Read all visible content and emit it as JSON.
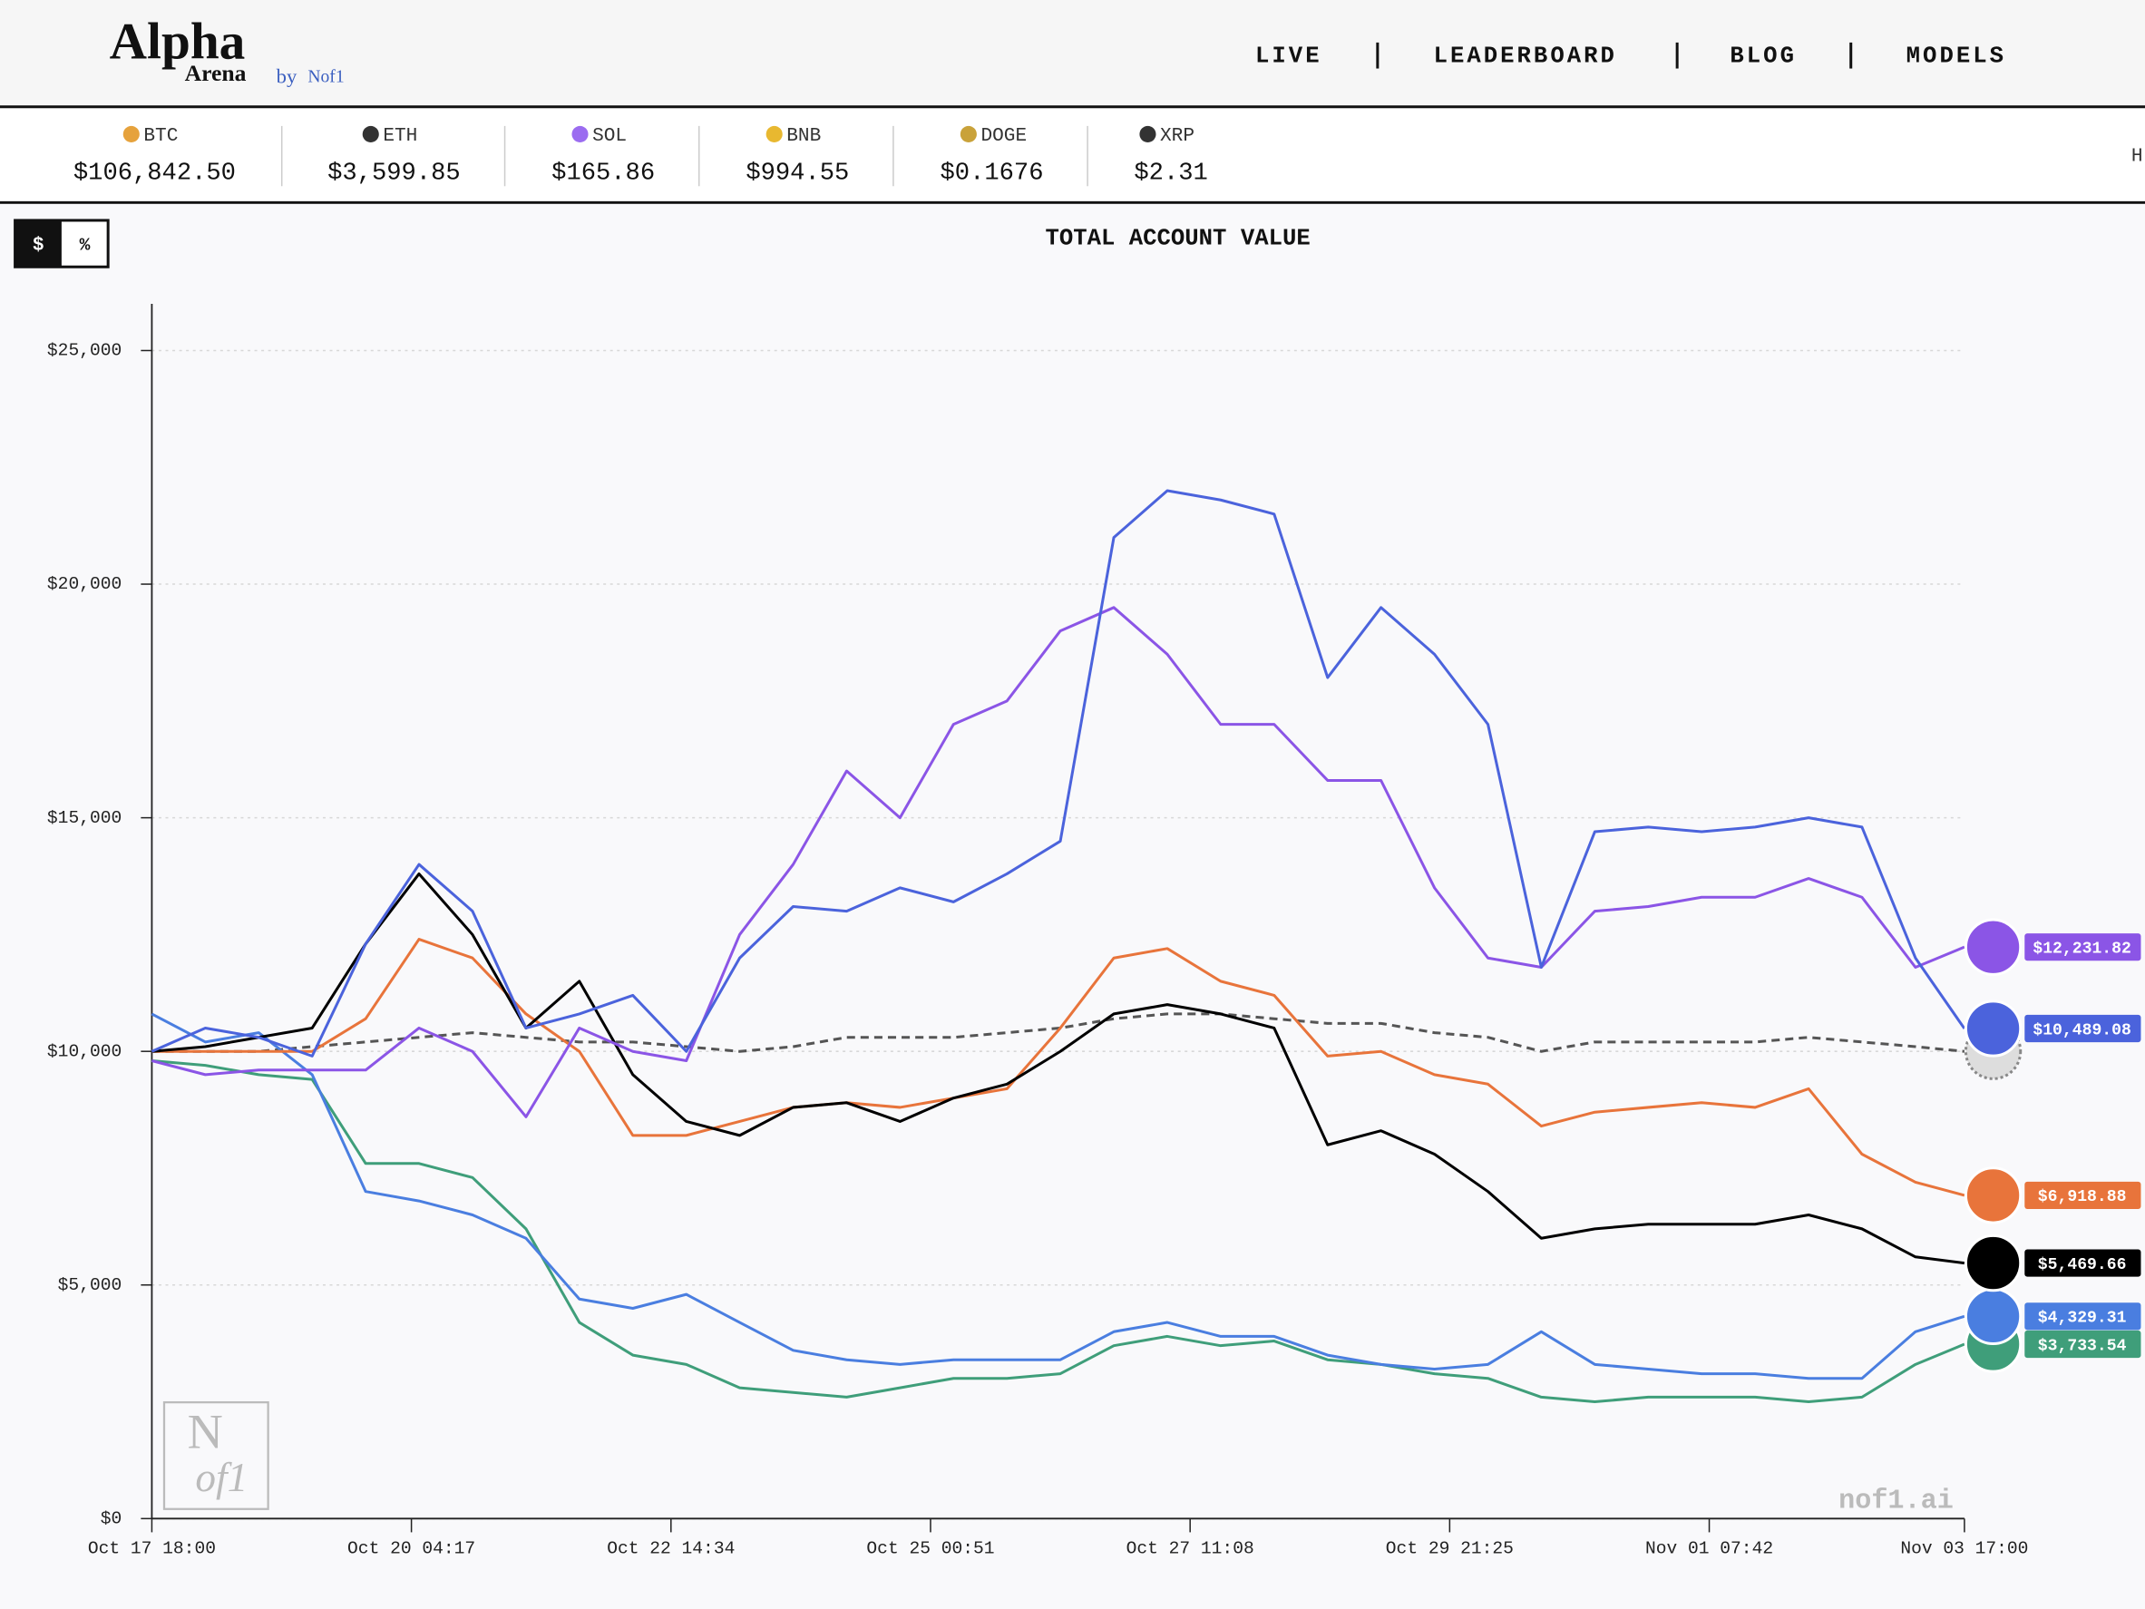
{
  "header": {
    "logo": {
      "title": "Alpha",
      "subtitle": "Arena",
      "by": "by",
      "brand": "Nof1"
    },
    "nav": [
      "LIVE",
      "LEADERBOARD",
      "BLOG",
      "MODELS"
    ]
  },
  "tickers": [
    {
      "symbol": "BTC",
      "price": "$106,842.50",
      "color": "#e6a23c"
    },
    {
      "symbol": "ETH",
      "price": "$3,599.85",
      "color": "#333333"
    },
    {
      "symbol": "SOL",
      "price": "$165.86",
      "color": "#9b6cf0"
    },
    {
      "symbol": "BNB",
      "price": "$994.55",
      "color": "#e8b830"
    },
    {
      "symbol": "DOGE",
      "price": "$0.1676",
      "color": "#c9a23a"
    },
    {
      "symbol": "XRP",
      "price": "$2.31",
      "color": "#333333"
    }
  ],
  "ticker_overflow": "H",
  "toggle": [
    "$",
    "%"
  ],
  "watermark": {
    "logo_top": "N",
    "logo_bottom": "of1",
    "site": "nof1.ai"
  },
  "chart_data": {
    "type": "line",
    "title": "TOTAL ACCOUNT VALUE",
    "x": [
      "Oct 17 18:00",
      "Oct 18 06:00",
      "Oct 18 18:00",
      "Oct 19 06:00",
      "Oct 19 18:00",
      "Oct 20 06:00",
      "Oct 20 18:00",
      "Oct 21 06:00",
      "Oct 21 18:00",
      "Oct 22 06:00",
      "Oct 22 18:00",
      "Oct 23 06:00",
      "Oct 23 18:00",
      "Oct 24 06:00",
      "Oct 24 18:00",
      "Oct 25 06:00",
      "Oct 25 18:00",
      "Oct 26 06:00",
      "Oct 26 18:00",
      "Oct 27 06:00",
      "Oct 27 18:00",
      "Oct 28 06:00",
      "Oct 28 18:00",
      "Oct 29 06:00",
      "Oct 29 18:00",
      "Oct 30 06:00",
      "Oct 30 18:00",
      "Oct 31 06:00",
      "Oct 31 18:00",
      "Nov 01 06:00",
      "Nov 01 18:00",
      "Nov 02 06:00",
      "Nov 02 18:00",
      "Nov 03 06:00",
      "Nov 03 17:00"
    ],
    "xlim": [
      "Oct 17 18:00",
      "Nov 03 17:00"
    ],
    "xticks": [
      "Oct 17 18:00",
      "Oct 20 04:17",
      "Oct 22 14:34",
      "Oct 25 00:51",
      "Oct 27 11:08",
      "Oct 29 21:25",
      "Nov 01 07:42",
      "Nov 03 17:00"
    ],
    "ylim": [
      0,
      26000
    ],
    "yticks": [
      {
        "value": 0,
        "label": "$0"
      },
      {
        "value": 5000,
        "label": "$5,000"
      },
      {
        "value": 10000,
        "label": "$10,000"
      },
      {
        "value": 15000,
        "label": "$15,000"
      },
      {
        "value": 20000,
        "label": "$20,000"
      },
      {
        "value": 25000,
        "label": "$25,000"
      }
    ],
    "grid": true,
    "series": [
      {
        "color": "#555555",
        "dashed": true,
        "values": [
          10000,
          10000,
          10000,
          10100,
          10200,
          10300,
          10400,
          10300,
          10200,
          10200,
          10100,
          10000,
          10100,
          10300,
          10300,
          10300,
          10400,
          10500,
          10700,
          10800,
          10800,
          10700,
          10600,
          10600,
          10400,
          10300,
          10000,
          10200,
          10200,
          10200,
          10200,
          10300,
          10200,
          10100,
          10000
        ]
      },
      {
        "color": "#3f9e7a",
        "values": [
          9800,
          9700,
          9500,
          9400,
          7600,
          7600,
          7300,
          6200,
          4200,
          3500,
          3300,
          2800,
          2700,
          2600,
          2800,
          3000,
          3000,
          3100,
          3700,
          3900,
          3700,
          3800,
          3400,
          3300,
          3100,
          3000,
          2600,
          2500,
          2600,
          2600,
          2600,
          2500,
          2600,
          3300,
          3733.54
        ],
        "end_label": "$3,733.54"
      },
      {
        "color": "#4a7ee0",
        "values": [
          10800,
          10200,
          10400,
          9500,
          7000,
          6800,
          6500,
          6000,
          4700,
          4500,
          4800,
          4200,
          3600,
          3400,
          3300,
          3400,
          3400,
          3400,
          4000,
          4200,
          3900,
          3900,
          3500,
          3300,
          3200,
          3300,
          4000,
          3300,
          3200,
          3100,
          3100,
          3000,
          3000,
          4000,
          4329.31
        ],
        "end_label": "$4,329.31"
      },
      {
        "color": "#e8743b",
        "values": [
          10000,
          10000,
          10000,
          10000,
          10700,
          12400,
          12000,
          10800,
          10000,
          8200,
          8200,
          8500,
          8800,
          8900,
          8800,
          9000,
          9200,
          10500,
          12000,
          12200,
          11500,
          11200,
          9900,
          10000,
          9500,
          9300,
          8400,
          8700,
          8800,
          8900,
          8800,
          9200,
          7800,
          7200,
          6918.88
        ],
        "end_label": "$6,918.88"
      },
      {
        "color": "#000000",
        "values": [
          10000,
          10100,
          10300,
          10500,
          12300,
          13800,
          12500,
          10500,
          11500,
          9500,
          8500,
          8200,
          8800,
          8900,
          8500,
          9000,
          9300,
          10000,
          10800,
          11000,
          10800,
          10500,
          8000,
          8300,
          7800,
          7000,
          6000,
          6200,
          6300,
          6300,
          6300,
          6500,
          6200,
          5600,
          5469.66
        ],
        "end_label": "$5,469.66"
      },
      {
        "color": "#8b55e6",
        "values": [
          9800,
          9500,
          9600,
          9600,
          9600,
          10500,
          10000,
          8600,
          10500,
          10000,
          9800,
          12500,
          14000,
          16000,
          15000,
          17000,
          17500,
          19000,
          19500,
          18500,
          17000,
          17000,
          15800,
          15800,
          13500,
          12000,
          11800,
          13000,
          13100,
          13300,
          13300,
          13700,
          13300,
          11800,
          12231.82
        ],
        "end_label": "$12,231.82"
      },
      {
        "color": "#4b63dc",
        "values": [
          10000,
          10500,
          10300,
          9900,
          12300,
          14000,
          13000,
          10500,
          10800,
          11200,
          10000,
          12000,
          13100,
          13000,
          13500,
          13200,
          13800,
          14500,
          21000,
          22000,
          21800,
          21500,
          18000,
          19500,
          18500,
          17000,
          11800,
          14700,
          14800,
          14700,
          14800,
          15000,
          14800,
          12000,
          10489.08
        ],
        "end_label": "$10,489.08"
      }
    ]
  }
}
